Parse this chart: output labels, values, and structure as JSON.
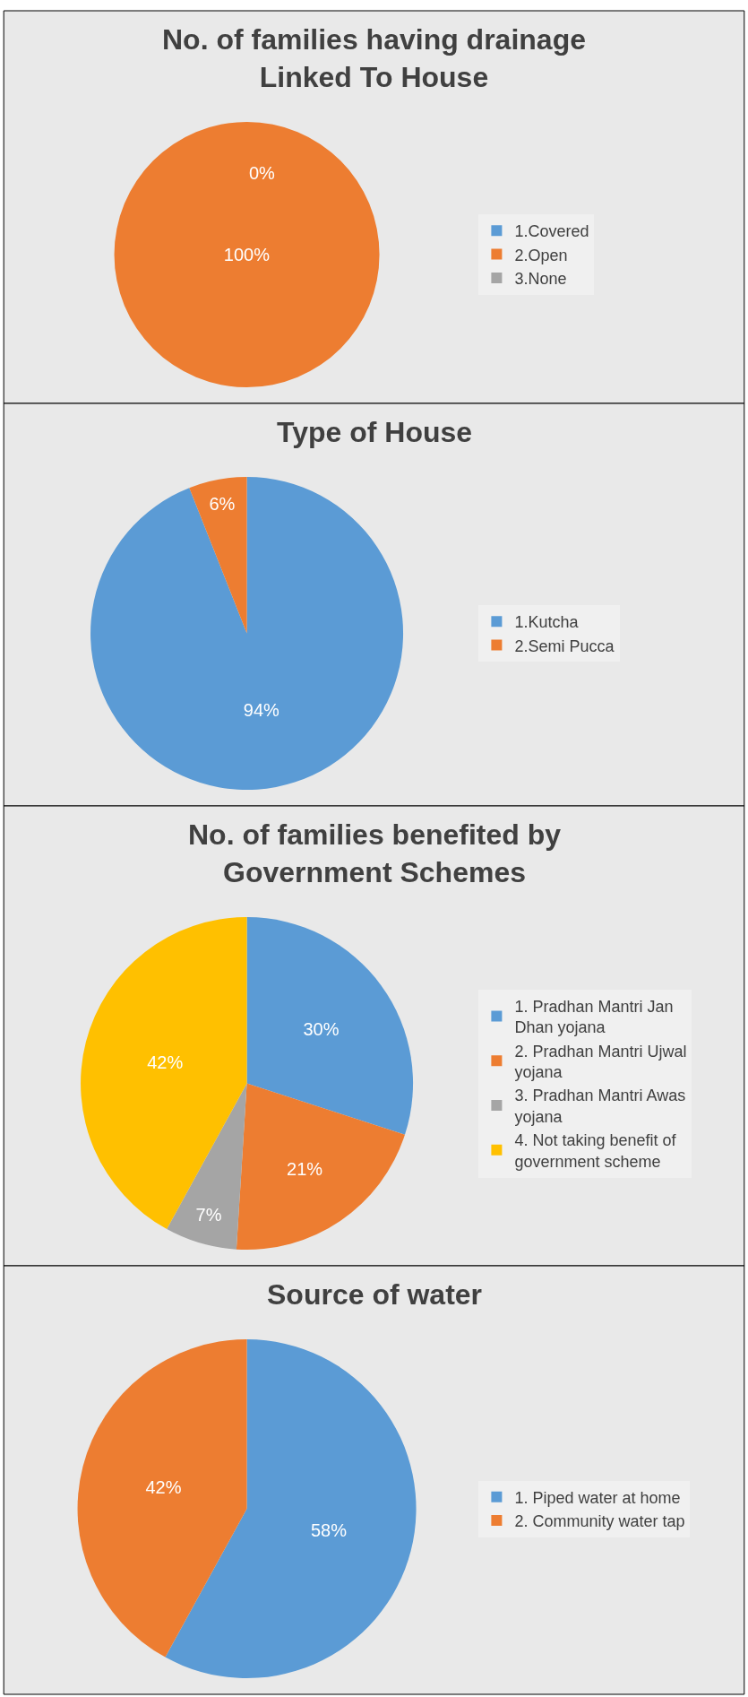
{
  "chart_data": [
    {
      "type": "pie",
      "title": "No. of families having drainage Linked To House",
      "categories": [
        "1.Covered",
        "2.Open",
        "3.None"
      ],
      "values": [
        0,
        100,
        0
      ],
      "colors": [
        "#5b9bd5",
        "#ed7d31",
        "#a5a5a5"
      ],
      "value_labels": [
        "0%",
        "100%",
        null
      ],
      "legend": "right"
    },
    {
      "type": "pie",
      "title": "Type of House",
      "categories": [
        "1.Kutcha",
        "2.Semi Pucca"
      ],
      "values": [
        94,
        6
      ],
      "colors": [
        "#5b9bd5",
        "#ed7d31"
      ],
      "value_labels": [
        "94%",
        "6%"
      ],
      "legend": "right"
    },
    {
      "type": "pie",
      "title": "No. of families benefited by Government Schemes",
      "categories": [
        "1. Pradhan Mantri Jan Dhan yojana",
        "2. Pradhan Mantri Ujwal yojana",
        "3. Pradhan Mantri Awas yojana",
        "4. Not taking benefit of government scheme"
      ],
      "values": [
        30,
        21,
        7,
        42
      ],
      "colors": [
        "#5b9bd5",
        "#ed7d31",
        "#a5a5a5",
        "#ffc000"
      ],
      "value_labels": [
        "30%",
        "21%",
        "7%",
        "42%"
      ],
      "legend": "right"
    },
    {
      "type": "pie",
      "title": "Source of water",
      "categories": [
        "1. Piped water at home",
        "2. Community water tap"
      ],
      "values": [
        58,
        42
      ],
      "colors": [
        "#5b9bd5",
        "#ed7d31"
      ],
      "value_labels": [
        "58%",
        "42%"
      ],
      "legend": "right"
    }
  ]
}
